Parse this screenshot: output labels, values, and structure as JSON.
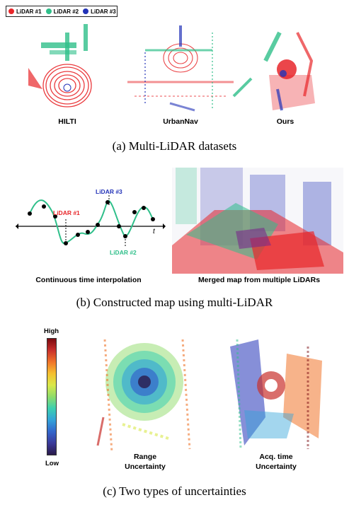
{
  "legend": {
    "items": [
      {
        "label": "LiDAR #1",
        "color": "#e8262a"
      },
      {
        "label": "LiDAR #2",
        "color": "#2fbf8a"
      },
      {
        "label": "LiDAR #3",
        "color": "#2333b8"
      }
    ]
  },
  "panel_a": {
    "labels": [
      "HILTI",
      "UrbanNav",
      "Ours"
    ],
    "caption": "(a)  Multi-LiDAR datasets"
  },
  "panel_b": {
    "interp_labels": {
      "l1": "LiDAR #1",
      "l2": "LiDAR #2",
      "l3": "LiDAR #3",
      "t": "t"
    },
    "left_label": "Continuous time interpolation",
    "right_label": "Merged map from multiple LiDARs",
    "caption": "(b)  Constructed map using multi-LiDAR"
  },
  "panel_c": {
    "colorbar_high": "High",
    "colorbar_low": "Low",
    "left_label_1": "Range",
    "left_label_2": "Uncertainty",
    "right_label_1": "Acq. time",
    "right_label_2": "Uncertainty",
    "caption": "(c)  Two types of uncertainties"
  }
}
